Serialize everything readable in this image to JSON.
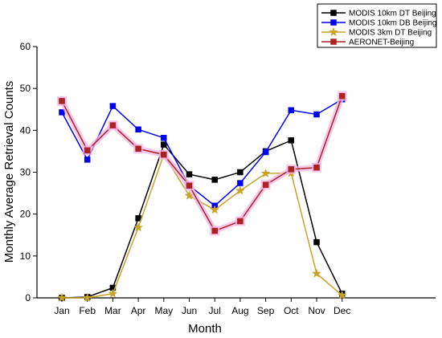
{
  "chart_data": {
    "type": "line",
    "title": "",
    "xlabel": "Month",
    "ylabel": "Monthly Average Retrieval Counts",
    "categories": [
      "Jan",
      "Feb",
      "Mar",
      "Apr",
      "May",
      "Jun",
      "Jul",
      "Aug",
      "Sep",
      "Oct",
      "Nov",
      "Dec"
    ],
    "ylim": [
      0,
      60
    ],
    "yticks": [
      "0",
      "10",
      "20",
      "30",
      "40",
      "50",
      "60"
    ],
    "grid": false,
    "legend_position": "top-right",
    "series": [
      {
        "name": "MODIS 10km DT Beijing",
        "color": "#000000",
        "marker": "square",
        "values": [
          0,
          0.2,
          2.4,
          19.0,
          36.6,
          29.5,
          28.2,
          30.0,
          35.0,
          37.6,
          13.3,
          1.0
        ]
      },
      {
        "name": "MODIS 10km DB Beijing",
        "color": "#0000ee",
        "marker": "square",
        "values": [
          44.3,
          33.0,
          45.8,
          40.2,
          38.2,
          26.8,
          22.0,
          27.4,
          34.8,
          44.8,
          43.8,
          47.4
        ]
      },
      {
        "name": "MODIS 3km DT Beijing",
        "color": "#c9a227",
        "marker": "star",
        "values": [
          0,
          0,
          1.0,
          16.8,
          34.2,
          24.4,
          21.0,
          25.6,
          29.7,
          29.8,
          5.8,
          0.6
        ]
      },
      {
        "name": "AERONET-Beijing",
        "color": "#aa2222",
        "marker": "square",
        "highlight": "#f4b6e6",
        "values": [
          47.0,
          35.2,
          41.2,
          35.6,
          34.2,
          26.8,
          16.0,
          18.3,
          27.0,
          30.7,
          31.1,
          48.2
        ]
      }
    ]
  }
}
